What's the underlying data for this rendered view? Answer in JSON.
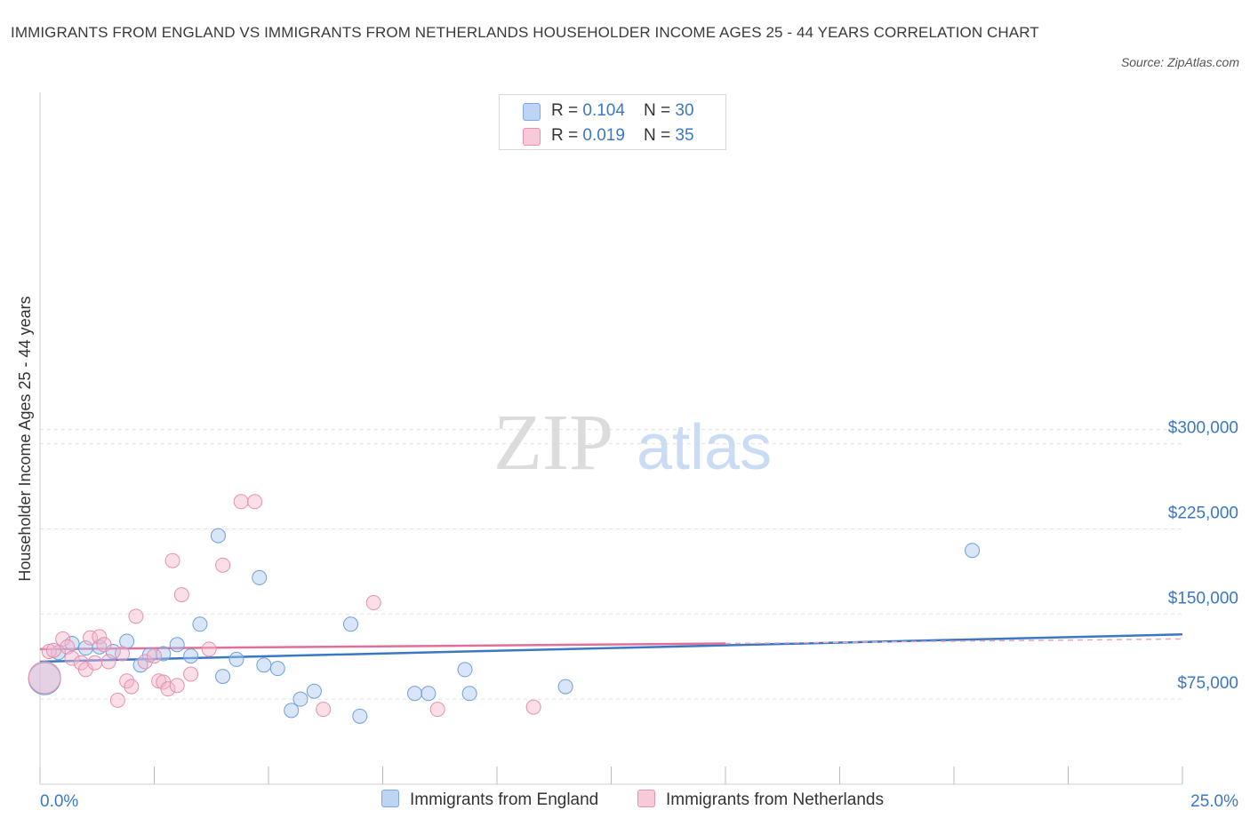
{
  "title": "IMMIGRANTS FROM ENGLAND VS IMMIGRANTS FROM NETHERLANDS HOUSEHOLDER INCOME AGES 25 - 44 YEARS CORRELATION CHART",
  "source": "Source: ZipAtlas.com",
  "watermark": {
    "zip": "ZIP",
    "atlas": "atlas"
  },
  "legend": {
    "rows": [
      {
        "r_label": "R = ",
        "r_value": "0.104",
        "n_label": "N = ",
        "n_value": "30"
      },
      {
        "r_label": "R = ",
        "r_value": "0.019",
        "n_label": "N = ",
        "n_value": "35"
      }
    ]
  },
  "colors": {
    "england": "#a9c8f0",
    "england_line": "#3b78c4",
    "netherlands": "#f5b8cb",
    "netherlands_line": "#e0709a"
  },
  "chart_data": {
    "type": "scatter",
    "ylabel": "Householder Income Ages 25 - 44 years",
    "x_tick_labels": [
      "0.0%",
      "25.0%"
    ],
    "y_ticks": [
      {
        "value": 75000,
        "label": "$75,000"
      },
      {
        "value": 150000,
        "label": "$150,000"
      },
      {
        "value": 225000,
        "label": "$225,000"
      },
      {
        "value": 300000,
        "label": "$300,000"
      }
    ],
    "xlim": [
      0,
      25
    ],
    "ylim": [
      0,
      300000
    ],
    "grid": true,
    "legend_position": "top-center",
    "series": [
      {
        "name": "Immigrants from England",
        "points": [
          {
            "x": 0.1,
            "y": 93000,
            "big": true
          },
          {
            "x": 0.4,
            "y": 116000
          },
          {
            "x": 0.7,
            "y": 124000
          },
          {
            "x": 1.0,
            "y": 120000
          },
          {
            "x": 1.3,
            "y": 121000
          },
          {
            "x": 1.6,
            "y": 117000
          },
          {
            "x": 1.9,
            "y": 126000
          },
          {
            "x": 2.2,
            "y": 105000
          },
          {
            "x": 2.4,
            "y": 114000
          },
          {
            "x": 2.7,
            "y": 115000
          },
          {
            "x": 3.0,
            "y": 123000
          },
          {
            "x": 3.3,
            "y": 113000
          },
          {
            "x": 3.5,
            "y": 141000
          },
          {
            "x": 3.9,
            "y": 219000
          },
          {
            "x": 4.0,
            "y": 95000
          },
          {
            "x": 4.3,
            "y": 110000
          },
          {
            "x": 4.8,
            "y": 182000
          },
          {
            "x": 4.9,
            "y": 105000
          },
          {
            "x": 5.2,
            "y": 102000
          },
          {
            "x": 5.5,
            "y": 65000
          },
          {
            "x": 5.7,
            "y": 75000
          },
          {
            "x": 6.0,
            "y": 82000
          },
          {
            "x": 6.8,
            "y": 141000
          },
          {
            "x": 7.0,
            "y": 60000
          },
          {
            "x": 8.2,
            "y": 80000
          },
          {
            "x": 8.5,
            "y": 80000
          },
          {
            "x": 9.3,
            "y": 101000
          },
          {
            "x": 9.4,
            "y": 80000
          },
          {
            "x": 11.5,
            "y": 86000
          },
          {
            "x": 20.4,
            "y": 206000
          }
        ]
      },
      {
        "name": "Immigrants from Netherlands",
        "points": [
          {
            "x": 0.1,
            "y": 94000,
            "big": true
          },
          {
            "x": 0.2,
            "y": 117000
          },
          {
            "x": 0.3,
            "y": 118000
          },
          {
            "x": 0.5,
            "y": 128000
          },
          {
            "x": 0.6,
            "y": 121000
          },
          {
            "x": 0.7,
            "y": 111000
          },
          {
            "x": 0.9,
            "y": 107000
          },
          {
            "x": 1.0,
            "y": 101000
          },
          {
            "x": 1.1,
            "y": 129000
          },
          {
            "x": 1.2,
            "y": 107000
          },
          {
            "x": 1.3,
            "y": 130000
          },
          {
            "x": 1.4,
            "y": 123000
          },
          {
            "x": 1.5,
            "y": 108000
          },
          {
            "x": 1.7,
            "y": 74000
          },
          {
            "x": 1.8,
            "y": 115000
          },
          {
            "x": 1.9,
            "y": 91000
          },
          {
            "x": 2.0,
            "y": 86000
          },
          {
            "x": 2.1,
            "y": 148000
          },
          {
            "x": 2.3,
            "y": 108000
          },
          {
            "x": 2.5,
            "y": 113000
          },
          {
            "x": 2.6,
            "y": 91000
          },
          {
            "x": 2.7,
            "y": 90000
          },
          {
            "x": 2.8,
            "y": 84000
          },
          {
            "x": 2.9,
            "y": 197000
          },
          {
            "x": 3.0,
            "y": 87000
          },
          {
            "x": 3.1,
            "y": 167000
          },
          {
            "x": 3.3,
            "y": 97000
          },
          {
            "x": 3.7,
            "y": 119000
          },
          {
            "x": 4.0,
            "y": 193000
          },
          {
            "x": 4.4,
            "y": 249000
          },
          {
            "x": 4.7,
            "y": 249000
          },
          {
            "x": 6.2,
            "y": 66000
          },
          {
            "x": 7.3,
            "y": 160000
          },
          {
            "x": 8.7,
            "y": 66000
          },
          {
            "x": 10.8,
            "y": 68000
          }
        ]
      }
    ],
    "trend_lines": [
      {
        "series": "Immigrants from England",
        "x0": 0,
        "y0": 108000,
        "x1": 25,
        "y1": 132000
      },
      {
        "series": "Immigrants from Netherlands",
        "x0": 0,
        "y0": 119000,
        "x1": 15,
        "y1": 124000,
        "dash_to_x": 25,
        "dash_to_y": 128000
      }
    ]
  }
}
